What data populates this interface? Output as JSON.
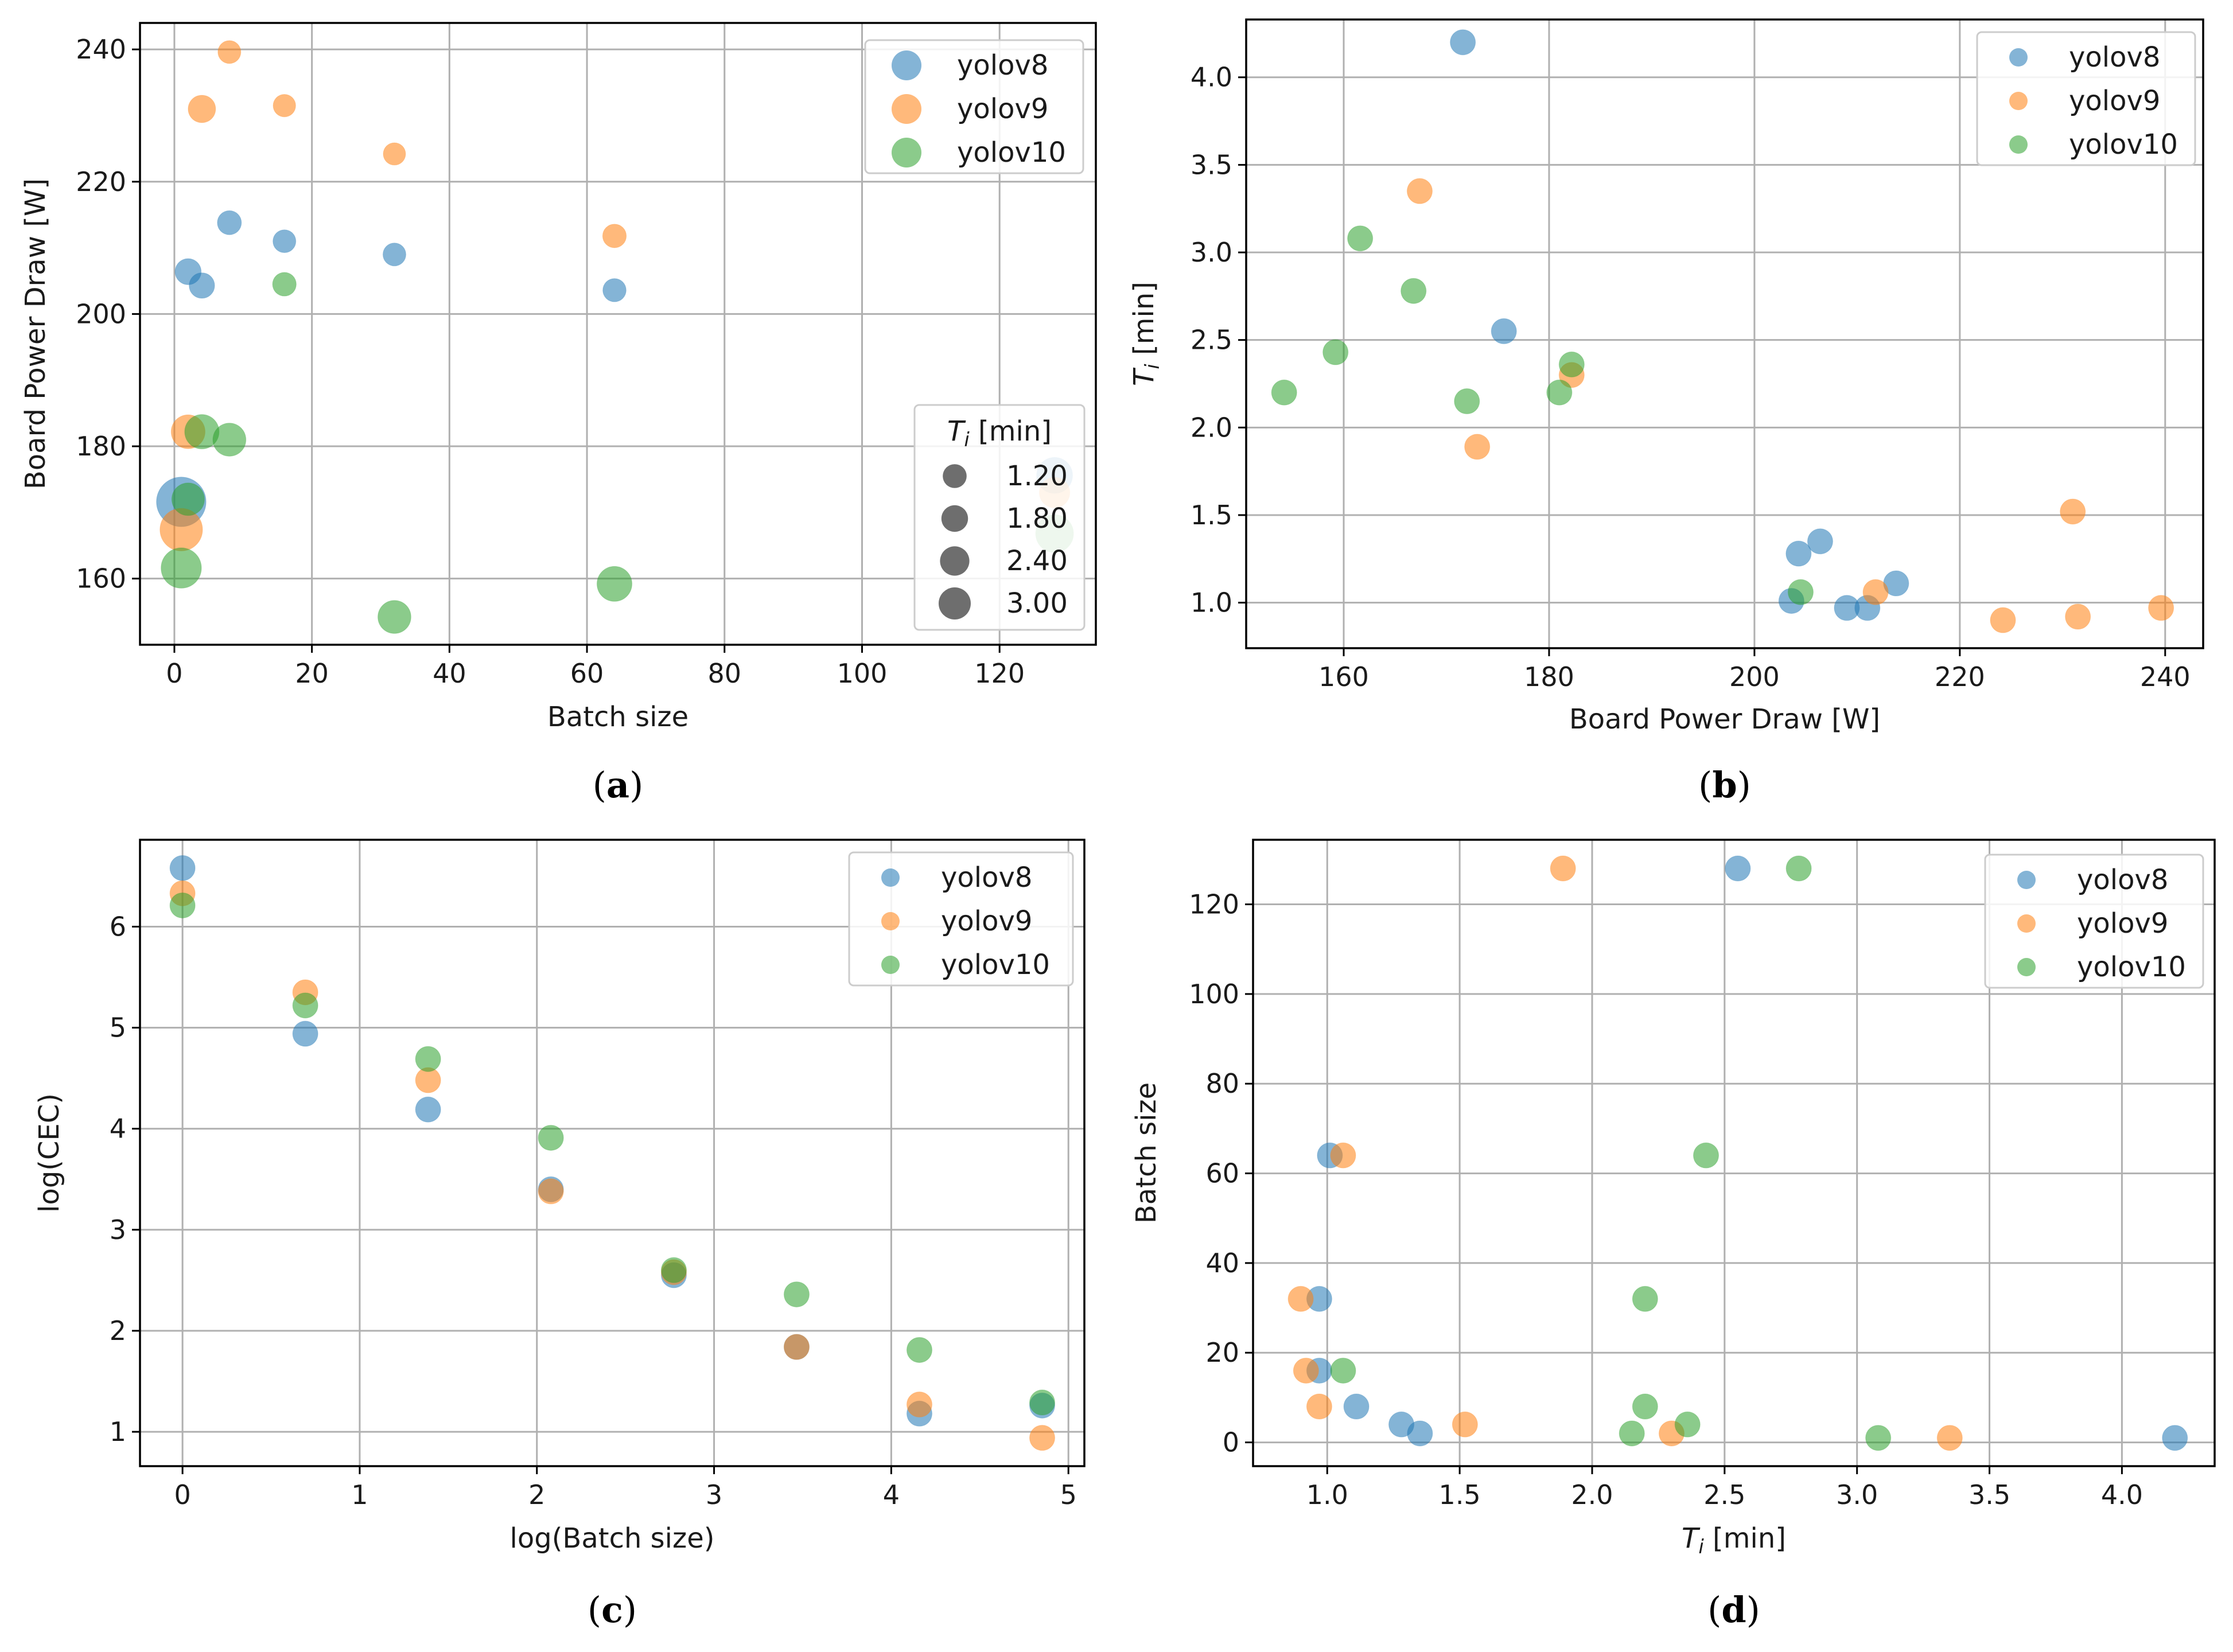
{
  "colors": {
    "yolov8": "#1f77b4",
    "yolov9": "#ff7f0e",
    "yolov10": "#2ca02c",
    "size_legend": "#555555"
  },
  "chart_data": [
    {
      "id": "a",
      "panel_label": "a",
      "type": "scatter",
      "xlabel": "Batch size",
      "ylabel": "Board Power Draw [W]",
      "xlim": [
        -5,
        134
      ],
      "ylim": [
        150,
        244
      ],
      "xticks": [
        0,
        20,
        40,
        60,
        80,
        100,
        120
      ],
      "yticks": [
        160,
        180,
        200,
        220,
        240
      ],
      "legend_position": "top-right",
      "series": [
        {
          "name": "yolov8",
          "color": "#1f77b4",
          "points": [
            {
              "x": 1,
              "y": 171.6,
              "s": 4.2
            },
            {
              "x": 2,
              "y": 206.4,
              "s": 1.35
            },
            {
              "x": 4,
              "y": 204.3,
              "s": 1.28
            },
            {
              "x": 8,
              "y": 213.8,
              "s": 1.11
            },
            {
              "x": 16,
              "y": 211.0,
              "s": 0.97
            },
            {
              "x": 32,
              "y": 209.0,
              "s": 0.97
            },
            {
              "x": 64,
              "y": 203.6,
              "s": 1.01
            },
            {
              "x": 128,
              "y": 175.6,
              "s": 2.55
            }
          ]
        },
        {
          "name": "yolov9",
          "color": "#ff7f0e",
          "points": [
            {
              "x": 1,
              "y": 167.4,
              "s": 3.35
            },
            {
              "x": 2,
              "y": 182.2,
              "s": 2.3
            },
            {
              "x": 4,
              "y": 231.0,
              "s": 1.52
            },
            {
              "x": 8,
              "y": 239.6,
              "s": 0.97
            },
            {
              "x": 16,
              "y": 231.5,
              "s": 0.92
            },
            {
              "x": 32,
              "y": 224.2,
              "s": 0.9
            },
            {
              "x": 64,
              "y": 211.8,
              "s": 1.06
            },
            {
              "x": 128,
              "y": 173.0,
              "s": 1.89
            }
          ]
        },
        {
          "name": "yolov10",
          "color": "#2ca02c",
          "points": [
            {
              "x": 1,
              "y": 161.6,
              "s": 3.08
            },
            {
              "x": 2,
              "y": 172.0,
              "s": 2.15
            },
            {
              "x": 4,
              "y": 182.2,
              "s": 2.36
            },
            {
              "x": 8,
              "y": 181.0,
              "s": 2.2
            },
            {
              "x": 16,
              "y": 204.5,
              "s": 1.06
            },
            {
              "x": 32,
              "y": 154.2,
              "s": 2.2
            },
            {
              "x": 64,
              "y": 159.2,
              "s": 2.43
            },
            {
              "x": 128,
              "y": 166.8,
              "s": 2.78
            }
          ]
        }
      ],
      "size_legend": {
        "title_main": "T",
        "title_sub": "i",
        "title_unit": " [min]",
        "entries": [
          {
            "label": "1.20",
            "s": 1.2
          },
          {
            "label": "1.80",
            "s": 1.8
          },
          {
            "label": "2.40",
            "s": 2.4
          },
          {
            "label": "3.00",
            "s": 3.0
          }
        ]
      }
    },
    {
      "id": "b",
      "panel_label": "b",
      "type": "scatter",
      "xlabel": "Board Power Draw [W]",
      "ylabel_main": "T",
      "ylabel_sub": "i",
      "ylabel_unit": " [min]",
      "xlim": [
        150.5,
        243.7
      ],
      "ylim": [
        0.74,
        4.33
      ],
      "xticks": [
        160,
        180,
        200,
        220,
        240
      ],
      "yticks": [
        1.0,
        1.5,
        2.0,
        2.5,
        3.0,
        3.5,
        4.0
      ],
      "ytick_decimals": 1,
      "legend_position": "top-right",
      "series": [
        {
          "name": "yolov8",
          "color": "#1f77b4",
          "points": [
            {
              "x": 171.6,
              "y": 4.2
            },
            {
              "x": 175.6,
              "y": 2.55
            },
            {
              "x": 203.6,
              "y": 1.01
            },
            {
              "x": 204.3,
              "y": 1.28
            },
            {
              "x": 206.4,
              "y": 1.35
            },
            {
              "x": 209.0,
              "y": 0.97
            },
            {
              "x": 211.0,
              "y": 0.97
            },
            {
              "x": 213.8,
              "y": 1.11
            }
          ]
        },
        {
          "name": "yolov9",
          "color": "#ff7f0e",
          "points": [
            {
              "x": 167.4,
              "y": 3.35
            },
            {
              "x": 173.0,
              "y": 1.89
            },
            {
              "x": 182.2,
              "y": 2.3
            },
            {
              "x": 211.8,
              "y": 1.06
            },
            {
              "x": 224.2,
              "y": 0.9
            },
            {
              "x": 231.0,
              "y": 1.52
            },
            {
              "x": 231.5,
              "y": 0.92
            },
            {
              "x": 239.6,
              "y": 0.97
            }
          ]
        },
        {
          "name": "yolov10",
          "color": "#2ca02c",
          "points": [
            {
              "x": 154.2,
              "y": 2.2
            },
            {
              "x": 159.2,
              "y": 2.43
            },
            {
              "x": 161.6,
              "y": 3.08
            },
            {
              "x": 166.8,
              "y": 2.78
            },
            {
              "x": 172.0,
              "y": 2.15
            },
            {
              "x": 181.0,
              "y": 2.2
            },
            {
              "x": 182.2,
              "y": 2.36
            },
            {
              "x": 204.5,
              "y": 1.06
            }
          ]
        }
      ]
    },
    {
      "id": "c",
      "panel_label": "c",
      "type": "scatter",
      "xlabel": "log(Batch size)",
      "ylabel": "log(CEC)",
      "xlim": [
        -0.24,
        5.09
      ],
      "ylim": [
        0.66,
        6.86
      ],
      "xticks": [
        0,
        1,
        2,
        3,
        4,
        5
      ],
      "yticks": [
        1,
        2,
        3,
        4,
        5,
        6
      ],
      "legend_position": "top-right",
      "series": [
        {
          "name": "yolov8",
          "color": "#1f77b4",
          "points": [
            {
              "x": 0,
              "y": 6.58
            },
            {
              "x": 0.693,
              "y": 4.94
            },
            {
              "x": 1.386,
              "y": 4.19
            },
            {
              "x": 2.079,
              "y": 3.4
            },
            {
              "x": 2.773,
              "y": 2.55
            },
            {
              "x": 3.466,
              "y": 1.84
            },
            {
              "x": 4.159,
              "y": 1.18
            },
            {
              "x": 4.852,
              "y": 1.26
            }
          ]
        },
        {
          "name": "yolov9",
          "color": "#ff7f0e",
          "points": [
            {
              "x": 0,
              "y": 6.33
            },
            {
              "x": 0.693,
              "y": 5.35
            },
            {
              "x": 1.386,
              "y": 4.48
            },
            {
              "x": 2.079,
              "y": 3.38
            },
            {
              "x": 2.773,
              "y": 2.58
            },
            {
              "x": 3.466,
              "y": 1.84
            },
            {
              "x": 4.159,
              "y": 1.27
            },
            {
              "x": 4.852,
              "y": 0.94
            }
          ]
        },
        {
          "name": "yolov10",
          "color": "#2ca02c",
          "points": [
            {
              "x": 0,
              "y": 6.21
            },
            {
              "x": 0.693,
              "y": 5.22
            },
            {
              "x": 1.386,
              "y": 4.69
            },
            {
              "x": 2.079,
              "y": 3.91
            },
            {
              "x": 2.773,
              "y": 2.6
            },
            {
              "x": 3.466,
              "y": 2.36
            },
            {
              "x": 4.159,
              "y": 1.81
            },
            {
              "x": 4.852,
              "y": 1.29
            }
          ]
        }
      ]
    },
    {
      "id": "d",
      "panel_label": "d",
      "type": "scatter",
      "xlabel_main": "T",
      "xlabel_sub": "i",
      "xlabel_unit": " [min]",
      "ylabel": "Batch size",
      "xlim": [
        0.72,
        4.35
      ],
      "ylim": [
        -5.3,
        134.4
      ],
      "xticks": [
        1.0,
        1.5,
        2.0,
        2.5,
        3.0,
        3.5,
        4.0
      ],
      "xtick_decimals": 1,
      "yticks": [
        0,
        20,
        40,
        60,
        80,
        100,
        120
      ],
      "legend_position": "top-right",
      "series": [
        {
          "name": "yolov8",
          "color": "#1f77b4",
          "points": [
            {
              "x": 4.2,
              "y": 1
            },
            {
              "x": 1.35,
              "y": 2
            },
            {
              "x": 1.28,
              "y": 4
            },
            {
              "x": 1.11,
              "y": 8
            },
            {
              "x": 0.97,
              "y": 16
            },
            {
              "x": 0.97,
              "y": 32
            },
            {
              "x": 1.01,
              "y": 64
            },
            {
              "x": 2.55,
              "y": 128
            }
          ]
        },
        {
          "name": "yolov9",
          "color": "#ff7f0e",
          "points": [
            {
              "x": 3.35,
              "y": 1
            },
            {
              "x": 2.3,
              "y": 2
            },
            {
              "x": 1.52,
              "y": 4
            },
            {
              "x": 0.97,
              "y": 8
            },
            {
              "x": 0.92,
              "y": 16
            },
            {
              "x": 0.9,
              "y": 32
            },
            {
              "x": 1.06,
              "y": 64
            },
            {
              "x": 1.89,
              "y": 128
            }
          ]
        },
        {
          "name": "yolov10",
          "color": "#2ca02c",
          "points": [
            {
              "x": 3.08,
              "y": 1
            },
            {
              "x": 2.15,
              "y": 2
            },
            {
              "x": 2.36,
              "y": 4
            },
            {
              "x": 2.2,
              "y": 8
            },
            {
              "x": 1.06,
              "y": 16
            },
            {
              "x": 2.2,
              "y": 32
            },
            {
              "x": 2.43,
              "y": 64
            },
            {
              "x": 2.78,
              "y": 128
            }
          ]
        }
      ]
    }
  ]
}
